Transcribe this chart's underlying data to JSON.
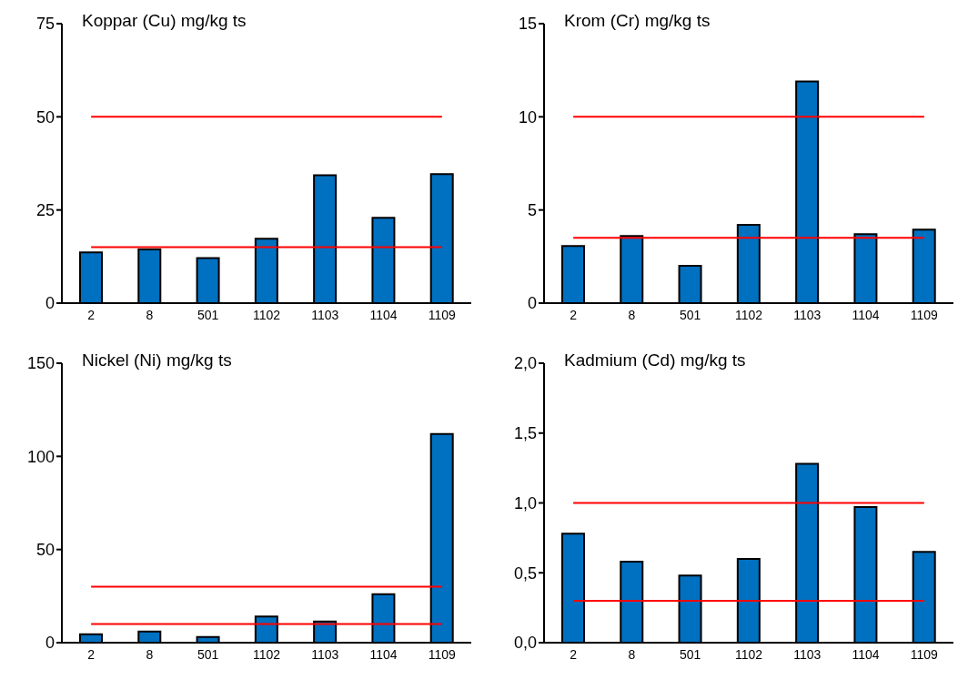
{
  "chart_data": [
    {
      "type": "bar",
      "title": "Koppar (Cu) mg/kg ts",
      "categories": [
        "2",
        "8",
        "501",
        "1102",
        "1103",
        "1104",
        "1109"
      ],
      "values": [
        13.6,
        14.4,
        12.1,
        17.3,
        34.3,
        22.9,
        34.6
      ],
      "color": "#0070c0",
      "ylim": [
        0,
        75
      ],
      "yticks": [
        0,
        25,
        50,
        75
      ],
      "grid": false,
      "ref_lines": [
        {
          "axis": "y",
          "value": 50,
          "color": "#ff0000"
        },
        {
          "axis": "y",
          "value": 15,
          "color": "#ff0000"
        }
      ]
    },
    {
      "type": "bar",
      "title": "Krom (Cr) mg/kg ts",
      "categories": [
        "2",
        "8",
        "501",
        "1102",
        "1103",
        "1104",
        "1109"
      ],
      "values": [
        3.06,
        3.6,
        2.0,
        4.2,
        11.9,
        3.7,
        3.95
      ],
      "color": "#0070c0",
      "ylim": [
        0,
        15
      ],
      "yticks": [
        0,
        5,
        10,
        15
      ],
      "grid": false,
      "ref_lines": [
        {
          "axis": "y",
          "value": 10,
          "color": "#ff0000"
        },
        {
          "axis": "y",
          "value": 3.5,
          "color": "#ff0000"
        }
      ]
    },
    {
      "type": "bar",
      "title": "Nickel (Ni) mg/kg ts",
      "categories": [
        "2",
        "8",
        "501",
        "1102",
        "1103",
        "1104",
        "1109"
      ],
      "values": [
        4.5,
        6,
        3,
        14,
        11.4,
        26,
        112
      ],
      "color": "#0070c0",
      "ylim": [
        0,
        150
      ],
      "yticks": [
        0,
        50,
        100,
        150
      ],
      "grid": false,
      "ref_lines": [
        {
          "axis": "y",
          "value": 30,
          "color": "#ff0000"
        },
        {
          "axis": "y",
          "value": 10,
          "color": "#ff0000"
        }
      ]
    },
    {
      "type": "bar",
      "title": "Kadmium (Cd) mg/kg ts",
      "categories": [
        "2",
        "8",
        "501",
        "1102",
        "1103",
        "1104",
        "1109"
      ],
      "values": [
        0.78,
        0.58,
        0.48,
        0.6,
        1.28,
        0.97,
        0.65
      ],
      "color": "#0070c0",
      "ylim": [
        0,
        2
      ],
      "yticks": [
        {
          "value": 0,
          "label": "0,0"
        },
        {
          "value": 0.5,
          "label": "0,5"
        },
        {
          "value": 1,
          "label": "1,0"
        },
        {
          "value": 1.5,
          "label": "1,5"
        },
        {
          "value": 2,
          "label": "2,0"
        }
      ],
      "grid": false,
      "ref_lines": [
        {
          "axis": "y",
          "value": 1,
          "color": "#ff0000"
        },
        {
          "axis": "y",
          "value": 0.3,
          "color": "#ff0000"
        }
      ]
    }
  ]
}
